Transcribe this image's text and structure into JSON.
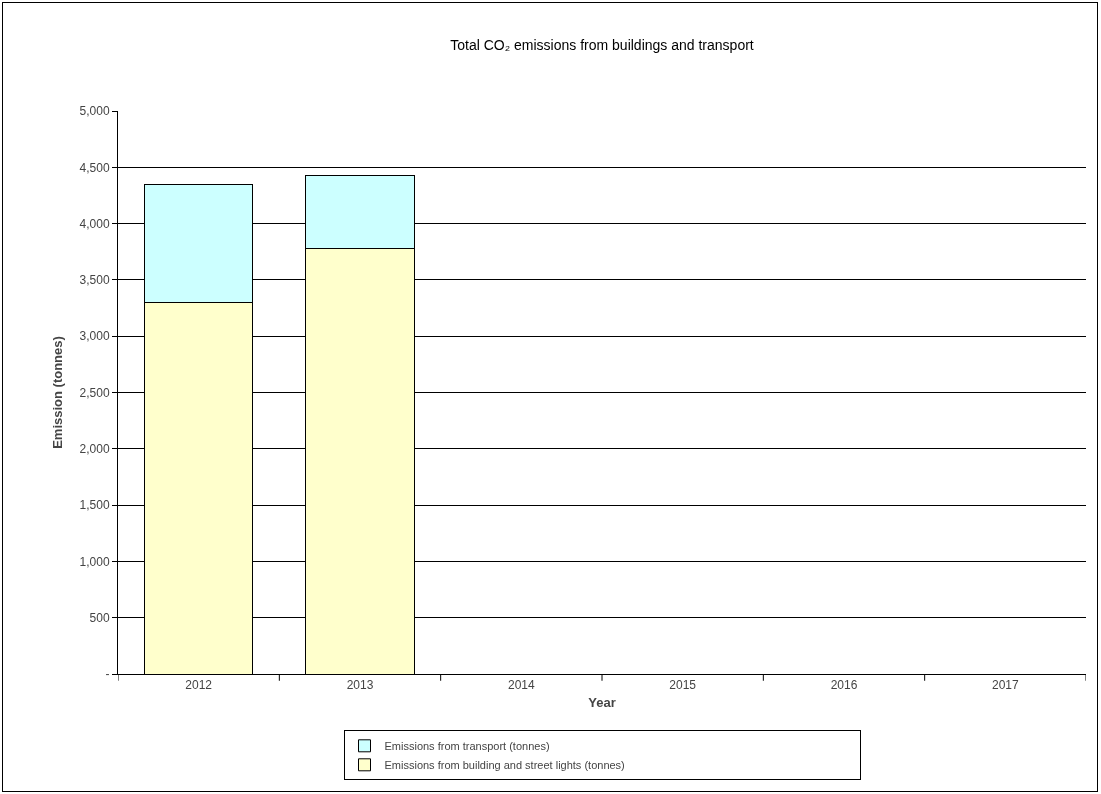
{
  "chart_data": {
    "type": "bar",
    "title": "Total CO₂ emissions from buildings and transport",
    "xlabel": "Year",
    "ylabel": "Emission (tonnes)",
    "categories": [
      "2012",
      "2013",
      "2014",
      "2015",
      "2016",
      "2017"
    ],
    "stacked": true,
    "series": [
      {
        "name": "Emissions from building and street lights (tonnes)",
        "color": "#ffffcc",
        "values": [
          3300,
          3780,
          null,
          null,
          null,
          null
        ]
      },
      {
        "name": "Emissions from transport (tonnes)",
        "color": "#ccffff",
        "values": [
          1050,
          650,
          null,
          null,
          null,
          null
        ]
      }
    ],
    "ylim": [
      0,
      5000
    ],
    "yticks": [
      {
        "value": 0,
        "label": "-"
      },
      {
        "value": 500,
        "label": "500"
      },
      {
        "value": 1000,
        "label": "1,000"
      },
      {
        "value": 1500,
        "label": "1,500"
      },
      {
        "value": 2000,
        "label": "2,000"
      },
      {
        "value": 2500,
        "label": "2,500"
      },
      {
        "value": 3000,
        "label": "3,000"
      },
      {
        "value": 3500,
        "label": "3,500"
      },
      {
        "value": 4000,
        "label": "4,000"
      },
      {
        "value": 4500,
        "label": "4,500"
      },
      {
        "value": 5000,
        "label": "5,000"
      }
    ],
    "grid": "y",
    "legend": "bottom"
  }
}
